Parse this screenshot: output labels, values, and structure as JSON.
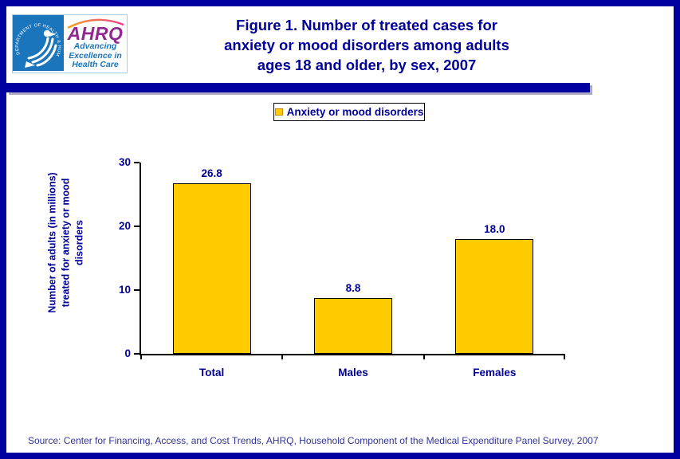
{
  "header": {
    "logo": {
      "hhs_ring_text": "DEPARTMENT OF HEALTH & HUMAN SERVICES · USA",
      "ahrq_acronym": "AHRQ",
      "tagline_lines": [
        "Advancing",
        "Excellence in",
        "Health Care"
      ]
    },
    "title_lines": [
      "Figure 1. Number of treated cases for",
      "anxiety or mood disorders among adults",
      "ages 18 and older, by sex, 2007"
    ]
  },
  "legend": {
    "label": "Anxiety or mood disorders"
  },
  "chart_data": {
    "type": "bar",
    "title": "Figure 1. Number of treated cases for anxiety or mood disorders among adults ages 18 and older, by sex, 2007",
    "series_name": "Anxiety or mood disorders",
    "categories": [
      "Total",
      "Males",
      "Females"
    ],
    "values": [
      26.8,
      8.8,
      18.0
    ],
    "value_labels": [
      "26.8",
      "8.8",
      "18.0"
    ],
    "ylabel": "Number of adults (in millions) treated for anxiety or mood disorders",
    "ylabel_lines": [
      "Number of adults (in millions)",
      "treated for anxiety or mood",
      "disorders"
    ],
    "xlabel": "",
    "ylim": [
      0,
      30
    ],
    "yticks": [
      0,
      10,
      20,
      30
    ],
    "bar_color": "#FFCC00",
    "bar_border_color": "#000000",
    "grid": false,
    "legend_position": "top-center"
  },
  "footer": {
    "source": "Source: Center for Financing, Access, and Cost Trends, AHRQ, Household Component of the Medical Expenditure Panel Survey, 2007"
  },
  "colors": {
    "navy_text": "#000099",
    "border_and_rule": "#0000A0",
    "hhs_blue": "#1B75BC",
    "ahrq_purple": "#92278F",
    "bar_fill": "#FFCC00",
    "source_text": "#333399"
  }
}
